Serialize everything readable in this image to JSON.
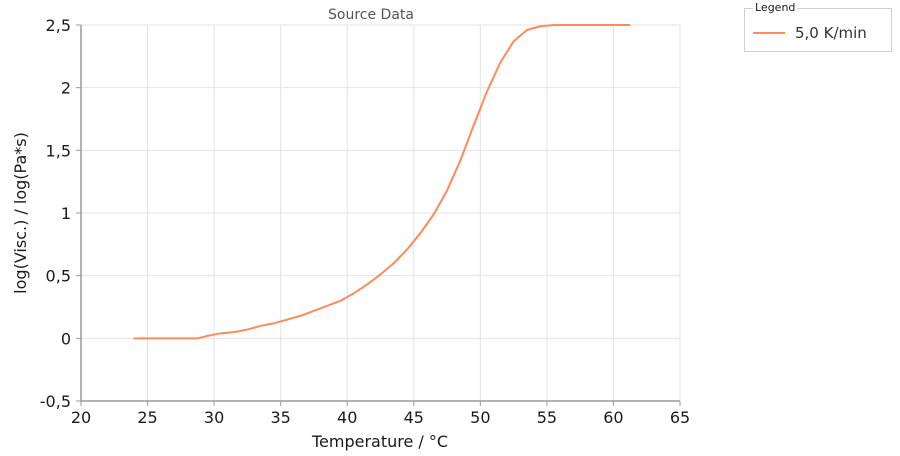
{
  "chart_data": {
    "type": "line",
    "title": "Source Data",
    "xlabel": "Temperature / °C",
    "ylabel": "log(Visc.) / log(Pa*s)",
    "xlim": [
      20,
      65
    ],
    "ylim": [
      -0.5,
      2.5
    ],
    "x_ticks": [
      20,
      25,
      30,
      35,
      40,
      45,
      50,
      55,
      60,
      65
    ],
    "y_ticks": [
      -0.5,
      0,
      0.5,
      1,
      1.5,
      2,
      2.5
    ],
    "x_tick_labels": [
      "20",
      "25",
      "30",
      "35",
      "40",
      "45",
      "50",
      "55",
      "60",
      "65"
    ],
    "y_tick_labels": [
      "-0,5",
      "0",
      "0,5",
      "1",
      "1,5",
      "2",
      "2,5"
    ],
    "grid": true,
    "legend": {
      "title": "Legend",
      "position": "top-right, outside plot"
    },
    "series": [
      {
        "name": "5,0 K/min",
        "color": "#ff8a5c",
        "x": [
          24,
          25,
          26,
          27,
          28,
          28.8,
          29.5,
          30.5,
          31.5,
          32.5,
          33.5,
          34.5,
          35.5,
          36.5,
          37.5,
          38.5,
          39.5,
          40.5,
          41.5,
          42.5,
          43.5,
          44.5,
          45.5,
          46.5,
          47.5,
          48.5,
          49.5,
          50.5,
          51.5,
          52.5,
          53.5,
          54.5,
          55.5,
          56.5,
          58,
          60,
          61.2
        ],
        "y": [
          0,
          0,
          0,
          0,
          0,
          0,
          0.02,
          0.04,
          0.05,
          0.07,
          0.1,
          0.12,
          0.15,
          0.18,
          0.22,
          0.26,
          0.3,
          0.36,
          0.43,
          0.51,
          0.6,
          0.71,
          0.84,
          0.99,
          1.18,
          1.42,
          1.7,
          1.97,
          2.2,
          2.37,
          2.46,
          2.49,
          2.5,
          2.5,
          2.5,
          2.5,
          2.5
        ]
      }
    ]
  }
}
